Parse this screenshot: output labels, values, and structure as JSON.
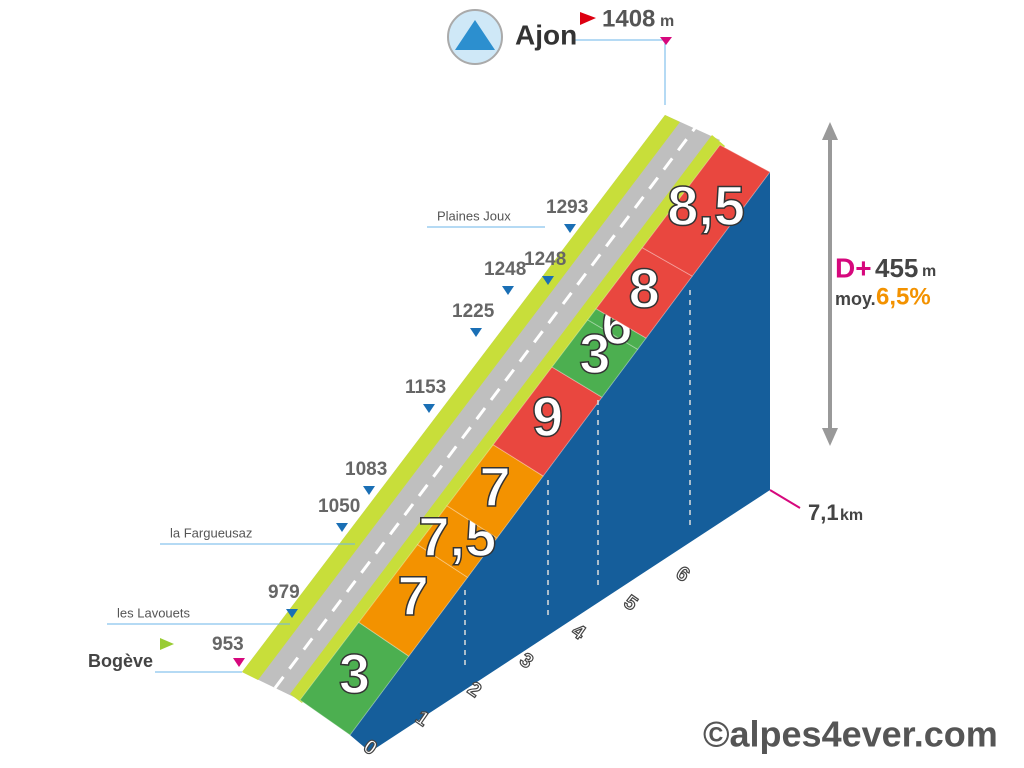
{
  "summit": {
    "name": "Ajon",
    "altitude": "1408",
    "unit": "m"
  },
  "start": {
    "name": "Bogève",
    "altitude": "953"
  },
  "stats": {
    "dplus_label": "D+",
    "dplus": "455",
    "dplus_unit": "m",
    "avg_label": "moy.",
    "avg": "6,5%"
  },
  "distance": {
    "value": "7,1",
    "unit": "km"
  },
  "km_ticks": [
    "0",
    "1",
    "2",
    "3",
    "4",
    "5",
    "6"
  ],
  "gradients": [
    "3",
    "7",
    "7,5",
    "7",
    "9",
    "3",
    "6",
    "8",
    "8,5"
  ],
  "altitudes": [
    "979",
    "1050",
    "1083",
    "1153",
    "1225",
    "1248",
    "1248",
    "1293"
  ],
  "places": [
    "les Lavouets",
    "la Fargueusaz",
    "Plaines Joux"
  ],
  "watermark": "©alpes4ever.com"
}
